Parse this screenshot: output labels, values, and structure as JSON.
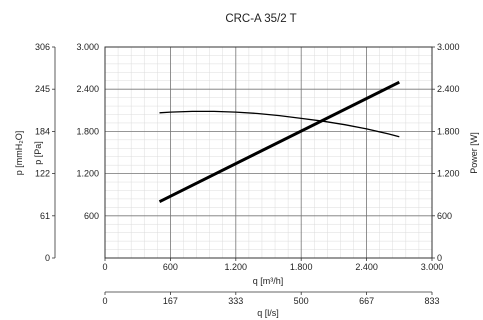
{
  "chart_data": {
    "type": "line",
    "title": "CRC-A 35/2 T",
    "xlabel": "q [m³/h]",
    "x2label": "q [l/s]",
    "ylabel": "p [Pa]",
    "y_outer_label": "p [mmH₂O]",
    "y2label": "Power [W]",
    "xlim": [
      0,
      3000
    ],
    "ylim": [
      0,
      3000
    ],
    "x_ticks": [
      0,
      600,
      1200,
      1800,
      2400,
      3000
    ],
    "x_tick_labels": [
      "0",
      "600",
      "1.200",
      "1.800",
      "2.400",
      "3.000"
    ],
    "x2_ticks": [
      0,
      600,
      1200,
      1800,
      2400,
      3000
    ],
    "x2_tick_labels": [
      "0",
      "167",
      "333",
      "500",
      "667",
      "833"
    ],
    "y_ticks": [
      600,
      1200,
      1800,
      2400,
      3000
    ],
    "y_tick_labels": [
      "600",
      "1.200",
      "1.800",
      "2.400",
      "3.000"
    ],
    "y_outer_ticks": [
      0,
      600,
      1200,
      1800,
      2400,
      3000
    ],
    "y_outer_tick_labels": [
      "0",
      "61",
      "122",
      "184",
      "245",
      "306"
    ],
    "y2_ticks": [
      0,
      600,
      1200,
      1800,
      2400,
      3000
    ],
    "y2_tick_labels": [
      "0",
      "600",
      "1.200",
      "1.800",
      "2.400",
      "3.000"
    ],
    "grid": true,
    "series": [
      {
        "role": "pressure",
        "x": [
          500,
          600,
          800,
          1000,
          1200,
          1400,
          1600,
          1800,
          2000,
          2200,
          2400,
          2600,
          2700
        ],
        "y": [
          2065,
          2075,
          2085,
          2085,
          2075,
          2055,
          2025,
          1985,
          1945,
          1895,
          1835,
          1765,
          1725
        ]
      },
      {
        "role": "power",
        "x": [
          500,
          2700
        ],
        "y": [
          800,
          2500
        ]
      }
    ]
  }
}
